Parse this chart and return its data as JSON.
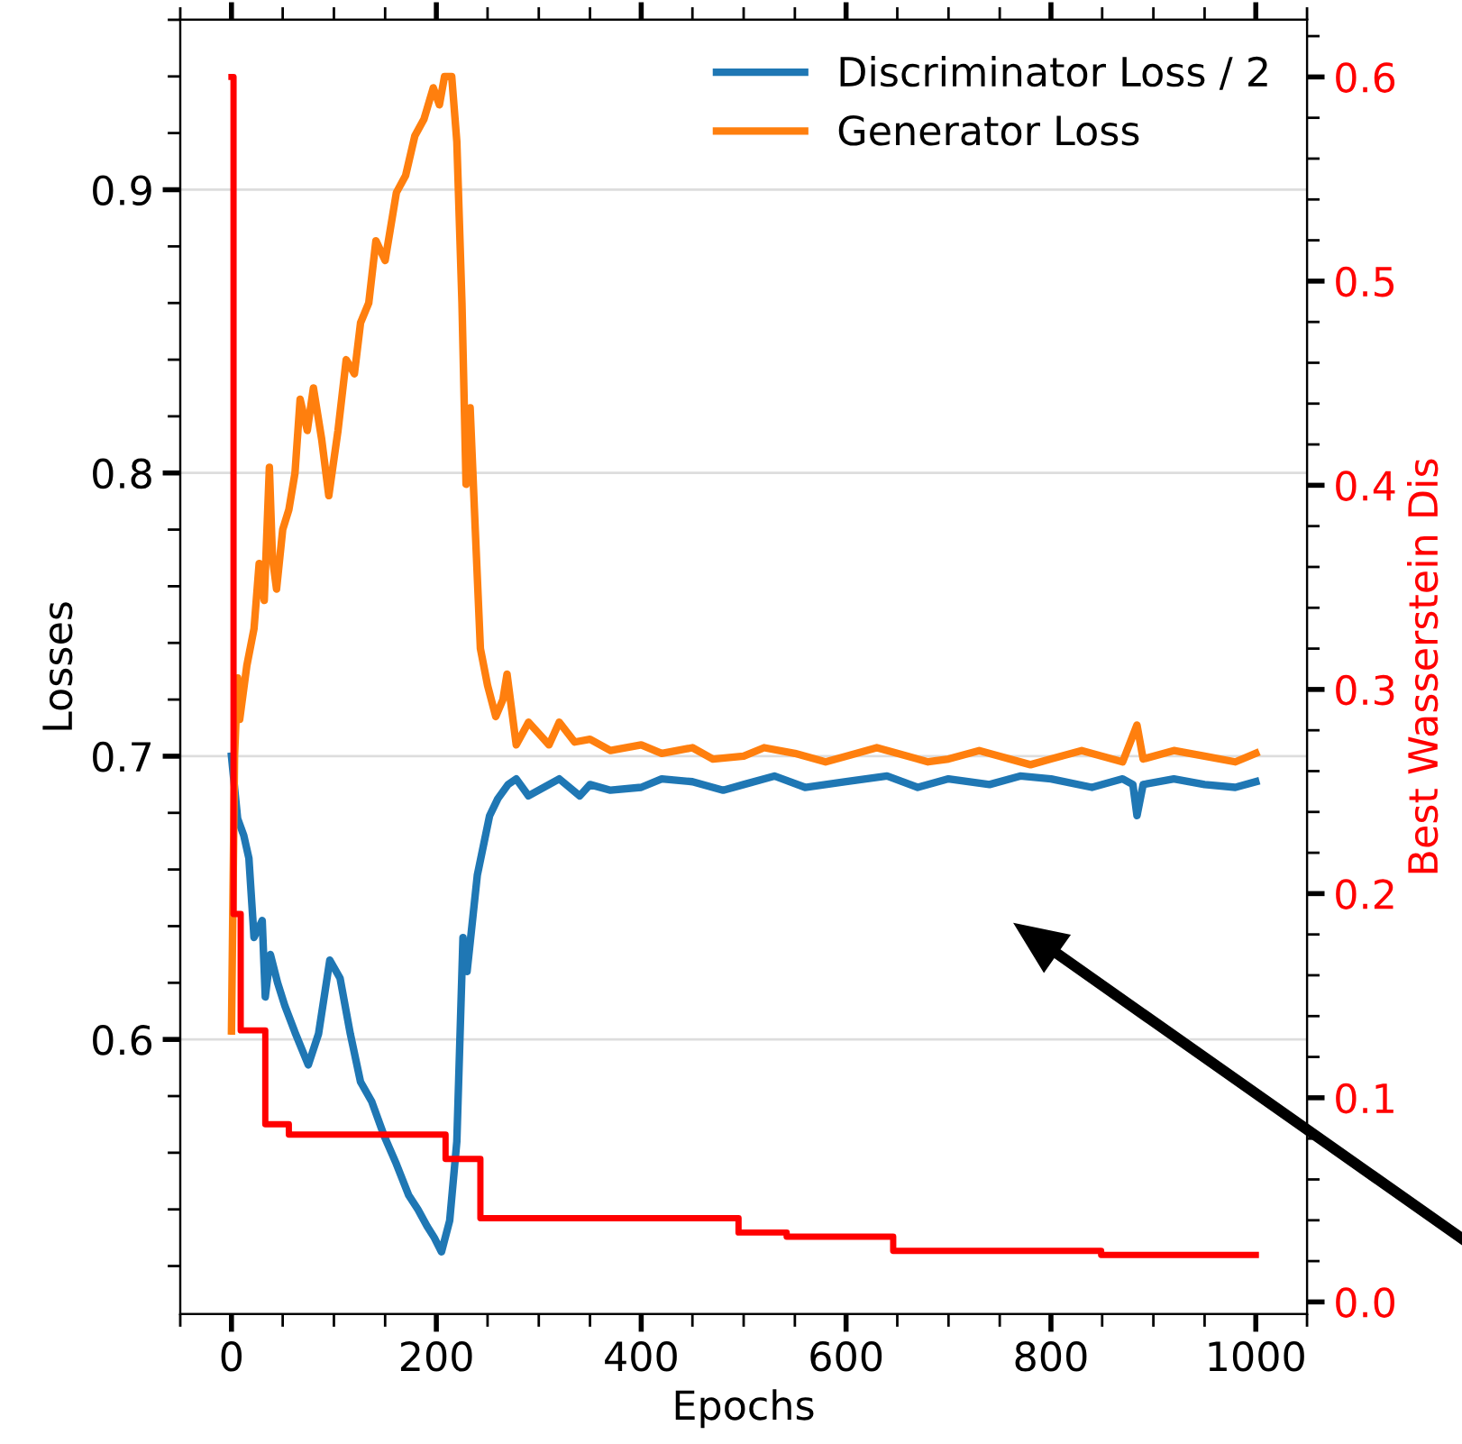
{
  "chart_data": {
    "type": "line",
    "xlabel": "Epochs",
    "ylabel": "Losses",
    "y2label": "Best Wasserstein Dis",
    "xlim": [
      -50,
      1050
    ],
    "xticks": [
      0,
      200,
      400,
      600,
      800,
      1000
    ],
    "ylim": [
      0.503,
      0.96
    ],
    "yticks": [
      0.6,
      0.7,
      0.8,
      0.9
    ],
    "y2lim": [
      -0.006,
      0.628
    ],
    "y2ticks": [
      {
        "value": 0.0,
        "label": "0.0"
      },
      0.1,
      0.2,
      0.3,
      0.4,
      0.5,
      0.6
    ],
    "grid": "y",
    "legend": "top right",
    "marker": "none",
    "line_style": "solid",
    "series": [
      {
        "name": "Discriminator Loss / 2",
        "color": "#1f77b4",
        "x": [
          0,
          6,
          12,
          17,
          22,
          30,
          33,
          38,
          45,
          52,
          62,
          75,
          85,
          96,
          106,
          116,
          126,
          137,
          149,
          161,
          173,
          182,
          191,
          198,
          205,
          213,
          220,
          226,
          230,
          240,
          252,
          260,
          270,
          278,
          290,
          300,
          320,
          340,
          350,
          370,
          400,
          420,
          450,
          480,
          500,
          530,
          560,
          600,
          640,
          670,
          700,
          740,
          770,
          800,
          840,
          870,
          880,
          884,
          890,
          920,
          950,
          980,
          1000
        ],
        "values": [
          0.7,
          0.678,
          0.672,
          0.664,
          0.636,
          0.642,
          0.615,
          0.63,
          0.62,
          0.612,
          0.6025,
          0.591,
          0.602,
          0.628,
          0.6216,
          0.602,
          0.585,
          0.578,
          0.566,
          0.556,
          0.545,
          0.54,
          0.534,
          0.53,
          0.525,
          0.536,
          0.564,
          0.636,
          0.624,
          0.658,
          0.679,
          0.685,
          0.69,
          0.692,
          0.686,
          0.688,
          0.692,
          0.686,
          0.69,
          0.688,
          0.689,
          0.692,
          0.691,
          0.688,
          0.69,
          0.693,
          0.689,
          0.691,
          0.693,
          0.689,
          0.692,
          0.69,
          0.693,
          0.692,
          0.689,
          0.692,
          0.69,
          0.679,
          0.69,
          0.692,
          0.69,
          0.689,
          0.691
        ]
      },
      {
        "name": "Generator Loss",
        "color": "#ff7f0e",
        "x": [
          0,
          3,
          6,
          8,
          15,
          22,
          27,
          32,
          37,
          40,
          44,
          50,
          56,
          62,
          67,
          74,
          80,
          88,
          95,
          104,
          112,
          120,
          126,
          134,
          141,
          150,
          161,
          170,
          179,
          188,
          197,
          203,
          208,
          215,
          220,
          225,
          229,
          233,
          238,
          243,
          250,
          258,
          265,
          269,
          278,
          290,
          300,
          310,
          320,
          335,
          350,
          370,
          400,
          420,
          450,
          470,
          500,
          520,
          550,
          580,
          600,
          630,
          650,
          680,
          700,
          730,
          750,
          780,
          800,
          830,
          850,
          870,
          884,
          890,
          920,
          950,
          980,
          1000
        ],
        "values": [
          0.603,
          0.7,
          0.7276,
          0.713,
          0.732,
          0.745,
          0.768,
          0.755,
          0.802,
          0.77,
          0.759,
          0.78,
          0.787,
          0.8,
          0.826,
          0.815,
          0.83,
          0.812,
          0.792,
          0.815,
          0.84,
          0.835,
          0.853,
          0.86,
          0.882,
          0.875,
          0.899,
          0.905,
          0.919,
          0.925,
          0.936,
          0.93,
          0.94,
          0.94,
          0.917,
          0.86,
          0.796,
          0.823,
          0.78,
          0.738,
          0.725,
          0.714,
          0.72,
          0.729,
          0.704,
          0.712,
          0.708,
          0.704,
          0.712,
          0.705,
          0.706,
          0.702,
          0.704,
          0.701,
          0.703,
          0.699,
          0.7,
          0.703,
          0.701,
          0.698,
          0.7,
          0.703,
          0.701,
          0.698,
          0.699,
          0.702,
          0.7,
          0.697,
          0.699,
          0.702,
          0.7,
          0.698,
          0.711,
          0.699,
          0.702,
          0.7,
          0.698,
          0.701
        ]
      },
      {
        "type": "step",
        "axis": "y2",
        "color": "#ff0000",
        "x": [
          0,
          2,
          9,
          33,
          56,
          209,
          243,
          495,
          542,
          646,
          849,
          1000
        ],
        "values": [
          0.6,
          0.19,
          0.133,
          0.087,
          0.082,
          0.07,
          0.041,
          0.034,
          0.032,
          0.025,
          0.023,
          0.023
        ]
      }
    ]
  }
}
